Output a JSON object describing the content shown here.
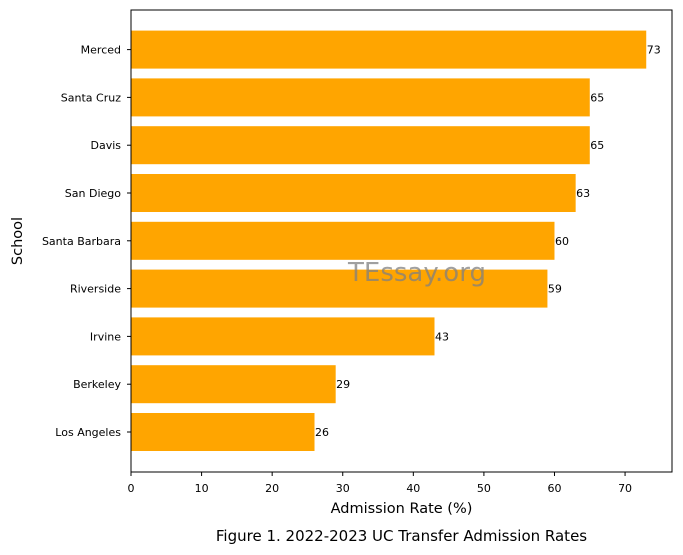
{
  "chart_data": {
    "type": "bar",
    "orientation": "horizontal",
    "categories": [
      "Los Angeles",
      "Berkeley",
      "Irvine",
      "Riverside",
      "Santa Barbara",
      "San Diego",
      "Davis",
      "Santa Cruz",
      "Merced"
    ],
    "values": [
      26,
      29,
      43,
      59,
      60,
      63,
      65,
      65,
      73
    ],
    "xlabel": "Admission Rate (%)",
    "ylabel": "School",
    "xlim": [
      0,
      76.65
    ],
    "xticks": [
      "0",
      "10",
      "20",
      "30",
      "40",
      "50",
      "60",
      "70"
    ],
    "bar_color": "#ffa500",
    "grid": false,
    "watermark": "TEssay.org"
  },
  "caption": "Figure 1. 2022-2023 UC Transfer Admission Rates"
}
